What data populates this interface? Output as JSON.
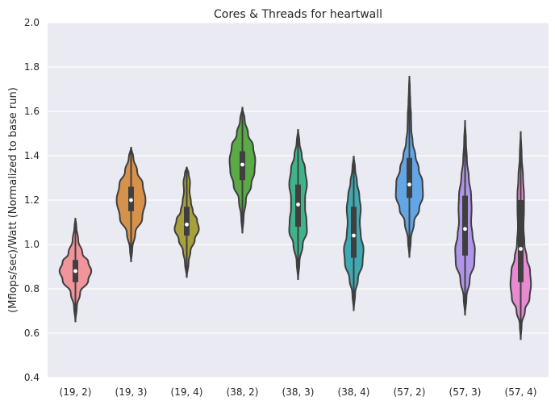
{
  "chart_data": {
    "type": "violin",
    "title": "Cores & Threads for heartwall",
    "xlabel": "",
    "ylabel": "(Mflops/sec)/Watt (Normalized to base run)",
    "ylim": [
      0.4,
      2.0
    ],
    "yticks": [
      "0.4",
      "0.6",
      "0.8",
      "1.0",
      "1.2",
      "1.4",
      "1.6",
      "1.8",
      "2.0"
    ],
    "grid": true,
    "categories": [
      "(19, 2)",
      "(19, 3)",
      "(19, 4)",
      "(38, 2)",
      "(38, 3)",
      "(38, 4)",
      "(57, 2)",
      "(57, 3)",
      "(57, 4)"
    ],
    "series": [
      {
        "color": "#f0959b",
        "min": 0.65,
        "q1": 0.83,
        "median": 0.88,
        "q3": 0.93,
        "max": 1.12,
        "shape": [
          [
            0.65,
            0.0
          ],
          [
            0.72,
            0.06
          ],
          [
            0.78,
            0.2
          ],
          [
            0.84,
            0.55
          ],
          [
            0.88,
            0.68
          ],
          [
            0.92,
            0.55
          ],
          [
            0.96,
            0.3
          ],
          [
            1.02,
            0.12
          ],
          [
            1.08,
            0.04
          ],
          [
            1.12,
            0.0
          ]
        ]
      },
      {
        "color": "#d6924a",
        "min": 0.92,
        "q1": 1.15,
        "median": 1.2,
        "q3": 1.26,
        "max": 1.44,
        "shape": [
          [
            0.92,
            0.0
          ],
          [
            0.98,
            0.05
          ],
          [
            1.05,
            0.18
          ],
          [
            1.12,
            0.48
          ],
          [
            1.2,
            0.62
          ],
          [
            1.27,
            0.5
          ],
          [
            1.33,
            0.26
          ],
          [
            1.39,
            0.1
          ],
          [
            1.44,
            0.0
          ]
        ]
      },
      {
        "color": "#a6a03d",
        "min": 0.85,
        "q1": 1.04,
        "median": 1.09,
        "q3": 1.17,
        "max": 1.35,
        "shape": [
          [
            0.85,
            0.0
          ],
          [
            0.92,
            0.08
          ],
          [
            0.97,
            0.16
          ],
          [
            1.02,
            0.34
          ],
          [
            1.07,
            0.52
          ],
          [
            1.11,
            0.44
          ],
          [
            1.15,
            0.26
          ],
          [
            1.19,
            0.18
          ],
          [
            1.24,
            0.12
          ],
          [
            1.28,
            0.14
          ],
          [
            1.32,
            0.08
          ],
          [
            1.35,
            0.0
          ]
        ]
      },
      {
        "color": "#5aaa46",
        "min": 1.05,
        "q1": 1.29,
        "median": 1.36,
        "q3": 1.42,
        "max": 1.62,
        "shape": [
          [
            1.05,
            0.0
          ],
          [
            1.12,
            0.05
          ],
          [
            1.2,
            0.15
          ],
          [
            1.27,
            0.38
          ],
          [
            1.33,
            0.52
          ],
          [
            1.38,
            0.55
          ],
          [
            1.44,
            0.46
          ],
          [
            1.5,
            0.24
          ],
          [
            1.56,
            0.1
          ],
          [
            1.62,
            0.0
          ]
        ]
      },
      {
        "color": "#3fb38a",
        "min": 0.84,
        "q1": 1.08,
        "median": 1.18,
        "q3": 1.27,
        "max": 1.52,
        "shape": [
          [
            0.84,
            0.0
          ],
          [
            0.92,
            0.06
          ],
          [
            1.0,
            0.2
          ],
          [
            1.06,
            0.38
          ],
          [
            1.11,
            0.36
          ],
          [
            1.16,
            0.3
          ],
          [
            1.21,
            0.3
          ],
          [
            1.27,
            0.38
          ],
          [
            1.34,
            0.3
          ],
          [
            1.4,
            0.16
          ],
          [
            1.46,
            0.06
          ],
          [
            1.52,
            0.0
          ]
        ]
      },
      {
        "color": "#3fa9b3",
        "min": 0.7,
        "q1": 0.94,
        "median": 1.04,
        "q3": 1.17,
        "max": 1.4,
        "shape": [
          [
            0.7,
            0.0
          ],
          [
            0.78,
            0.06
          ],
          [
            0.84,
            0.18
          ],
          [
            0.92,
            0.38
          ],
          [
            0.98,
            0.42
          ],
          [
            1.04,
            0.3
          ],
          [
            1.1,
            0.26
          ],
          [
            1.16,
            0.3
          ],
          [
            1.22,
            0.24
          ],
          [
            1.28,
            0.14
          ],
          [
            1.34,
            0.06
          ],
          [
            1.4,
            0.0
          ]
        ]
      },
      {
        "color": "#62a6e6",
        "min": 0.94,
        "q1": 1.21,
        "median": 1.27,
        "q3": 1.39,
        "max": 1.76,
        "shape": [
          [
            0.94,
            0.0
          ],
          [
            1.02,
            0.06
          ],
          [
            1.1,
            0.2
          ],
          [
            1.16,
            0.42
          ],
          [
            1.22,
            0.58
          ],
          [
            1.28,
            0.56
          ],
          [
            1.34,
            0.4
          ],
          [
            1.4,
            0.26
          ],
          [
            1.46,
            0.14
          ],
          [
            1.52,
            0.08
          ],
          [
            1.58,
            0.07
          ],
          [
            1.64,
            0.04
          ],
          [
            1.7,
            0.02
          ],
          [
            1.76,
            0.0
          ]
        ]
      },
      {
        "color": "#b096e8",
        "min": 0.68,
        "q1": 0.95,
        "median": 1.07,
        "q3": 1.22,
        "max": 1.56,
        "shape": [
          [
            0.68,
            0.0
          ],
          [
            0.76,
            0.06
          ],
          [
            0.84,
            0.2
          ],
          [
            0.92,
            0.4
          ],
          [
            0.98,
            0.42
          ],
          [
            1.04,
            0.32
          ],
          [
            1.1,
            0.26
          ],
          [
            1.16,
            0.28
          ],
          [
            1.22,
            0.26
          ],
          [
            1.3,
            0.16
          ],
          [
            1.38,
            0.08
          ],
          [
            1.46,
            0.04
          ],
          [
            1.56,
            0.0
          ]
        ]
      },
      {
        "color": "#e68ad2",
        "min": 0.57,
        "q1": 0.83,
        "median": 0.98,
        "q3": 1.2,
        "max": 1.51,
        "shape": [
          [
            0.57,
            0.0
          ],
          [
            0.64,
            0.04
          ],
          [
            0.7,
            0.18
          ],
          [
            0.76,
            0.38
          ],
          [
            0.82,
            0.44
          ],
          [
            0.88,
            0.4
          ],
          [
            0.94,
            0.26
          ],
          [
            1.0,
            0.16
          ],
          [
            1.08,
            0.12
          ],
          [
            1.16,
            0.14
          ],
          [
            1.22,
            0.14
          ],
          [
            1.3,
            0.1
          ],
          [
            1.4,
            0.04
          ],
          [
            1.51,
            0.0
          ]
        ]
      }
    ]
  }
}
